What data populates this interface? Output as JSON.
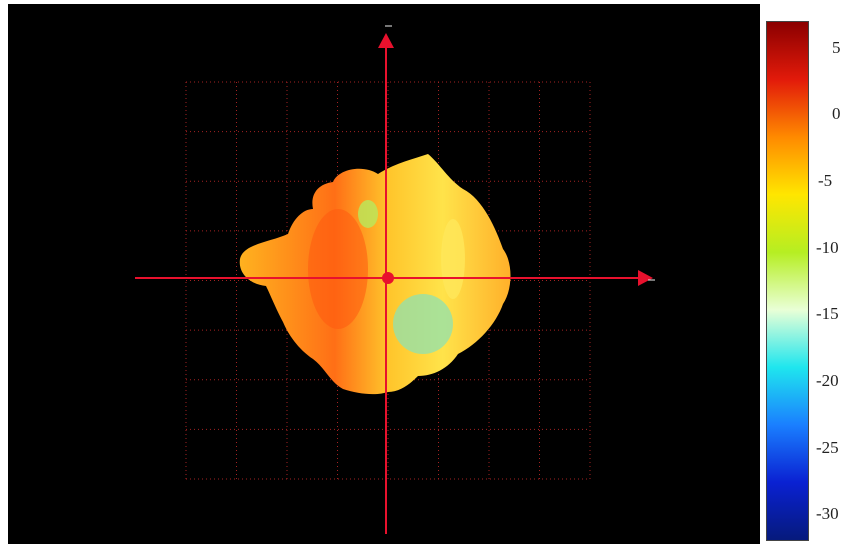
{
  "chart_data": {
    "type": "heatmap",
    "title": "",
    "xlabel": "",
    "ylabel": "",
    "colorbar": {
      "range": [
        -32,
        7
      ],
      "ticks": [
        5,
        0,
        -5,
        -10,
        -15,
        -20,
        -25,
        -30
      ],
      "tick_labels": [
        "5",
        "0",
        "-5",
        "-10",
        "-15",
        "-20",
        "-25",
        "-30"
      ],
      "colors": [
        "#8b0000",
        "#e21a0a",
        "#ff8a00",
        "#ffe600",
        "#b6ee22",
        "#e9ffd6",
        "#1fe6ee",
        "#1a7fff",
        "#0a21d2",
        "#061a7c"
      ]
    },
    "background": "#000000",
    "axis_color": "#e8112d",
    "dominant_colors": [
      "#ff7a1a",
      "#ffa21e",
      "#ffd033",
      "#c6e65a",
      "#77e3b8"
    ],
    "grid": true
  }
}
